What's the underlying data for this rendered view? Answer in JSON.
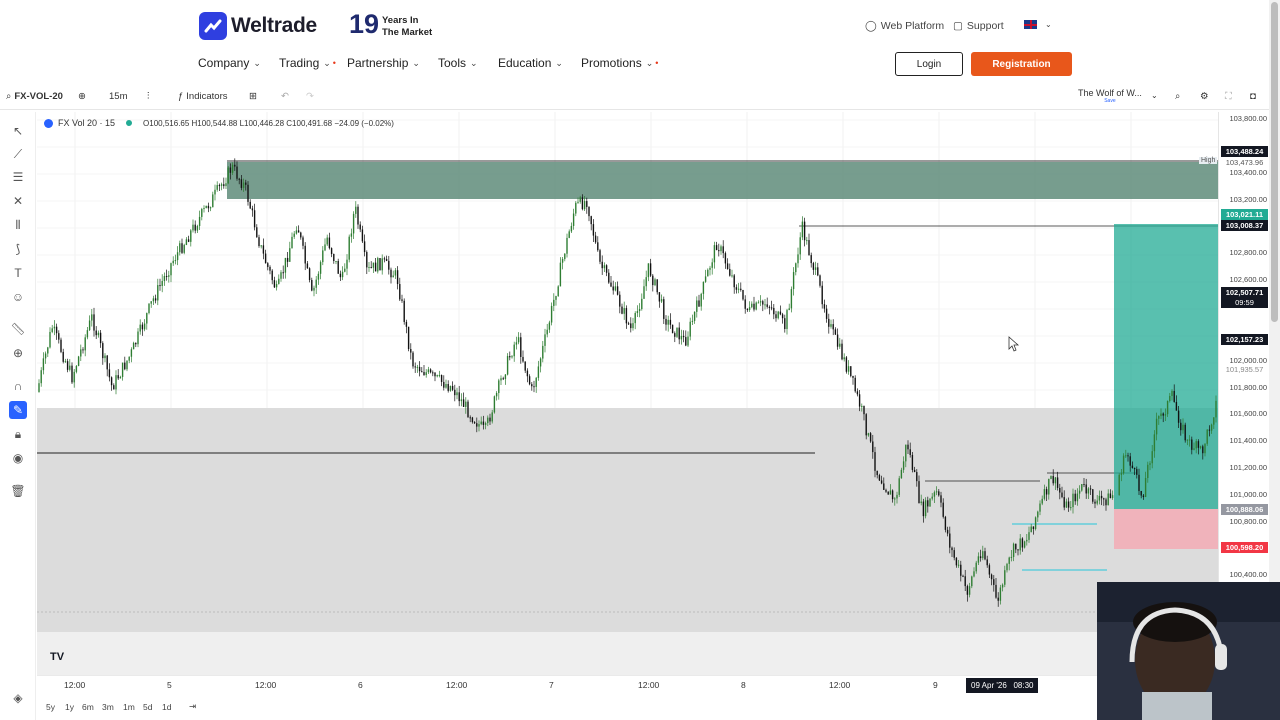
{
  "nav": {
    "brand": "Weltrade",
    "years_number": "19",
    "years_line1": "Years In",
    "years_line2": "The Market",
    "web_platform": "Web Platform",
    "support": "Support",
    "menu": [
      {
        "label": "Company"
      },
      {
        "label": "Trading"
      },
      {
        "label": "Partnership"
      },
      {
        "label": "Tools"
      },
      {
        "label": "Education"
      },
      {
        "label": "Promotions"
      }
    ],
    "login": "Login",
    "registration": "Registration"
  },
  "toolbar": {
    "symbol": "FX-VOL-20",
    "interval": "15m",
    "indicators": "Indicators",
    "layout_name": "The Wolf of W...",
    "layout_sub": "Save"
  },
  "legend": {
    "symbol": "FX Vol 20 · 15",
    "ohlc": "O100,516.65 H100,544.88 L100,446.28 C100,491.68 −24.09 (−0.02%)"
  },
  "price_axis": {
    "labels": [
      "103,800.00",
      "103,400.00",
      "103,200.00",
      "102,800.00",
      "102,600.00",
      "102,000.00",
      "101,800.00",
      "101,600.00",
      "101,400.00",
      "101,200.00",
      "101,000.00",
      "100,800.00",
      "100,400.00"
    ],
    "tags": [
      {
        "text": "103,488.24",
        "color": "#131722"
      },
      {
        "text": "103,473.96",
        "color": "#c9d6de"
      },
      {
        "text": "103,021.11",
        "color": "#22ab94"
      },
      {
        "text": "103,008.37",
        "color": "#131722"
      },
      {
        "text": "102,507.71",
        "color": "#131722"
      },
      {
        "text": "09:59",
        "color": "#131722"
      },
      {
        "text": "102,157.23",
        "color": "#131722"
      },
      {
        "text": "101,935.57",
        "color": "#ffffff"
      },
      {
        "text": "100,888.06",
        "color": "#9598a1"
      },
      {
        "text": "100,598.20",
        "color": "#f23645"
      }
    ],
    "high_label": "High"
  },
  "time_axis": {
    "labels": [
      "12:00",
      "5",
      "12:00",
      "6",
      "12:00",
      "7",
      "12:00",
      "8",
      "12:00",
      "9"
    ],
    "crosshair": "09 Apr '26   08:30"
  },
  "ranges": [
    "5y",
    "1y",
    "6m",
    "3m",
    "1m",
    "5d",
    "1d"
  ],
  "colors": {
    "accent": "#2f3fe0",
    "registration": "#e8571b",
    "supply_zone": "#5f8c7a",
    "long_profit": "#22ab94",
    "long_loss": "#f7a6b0"
  }
}
